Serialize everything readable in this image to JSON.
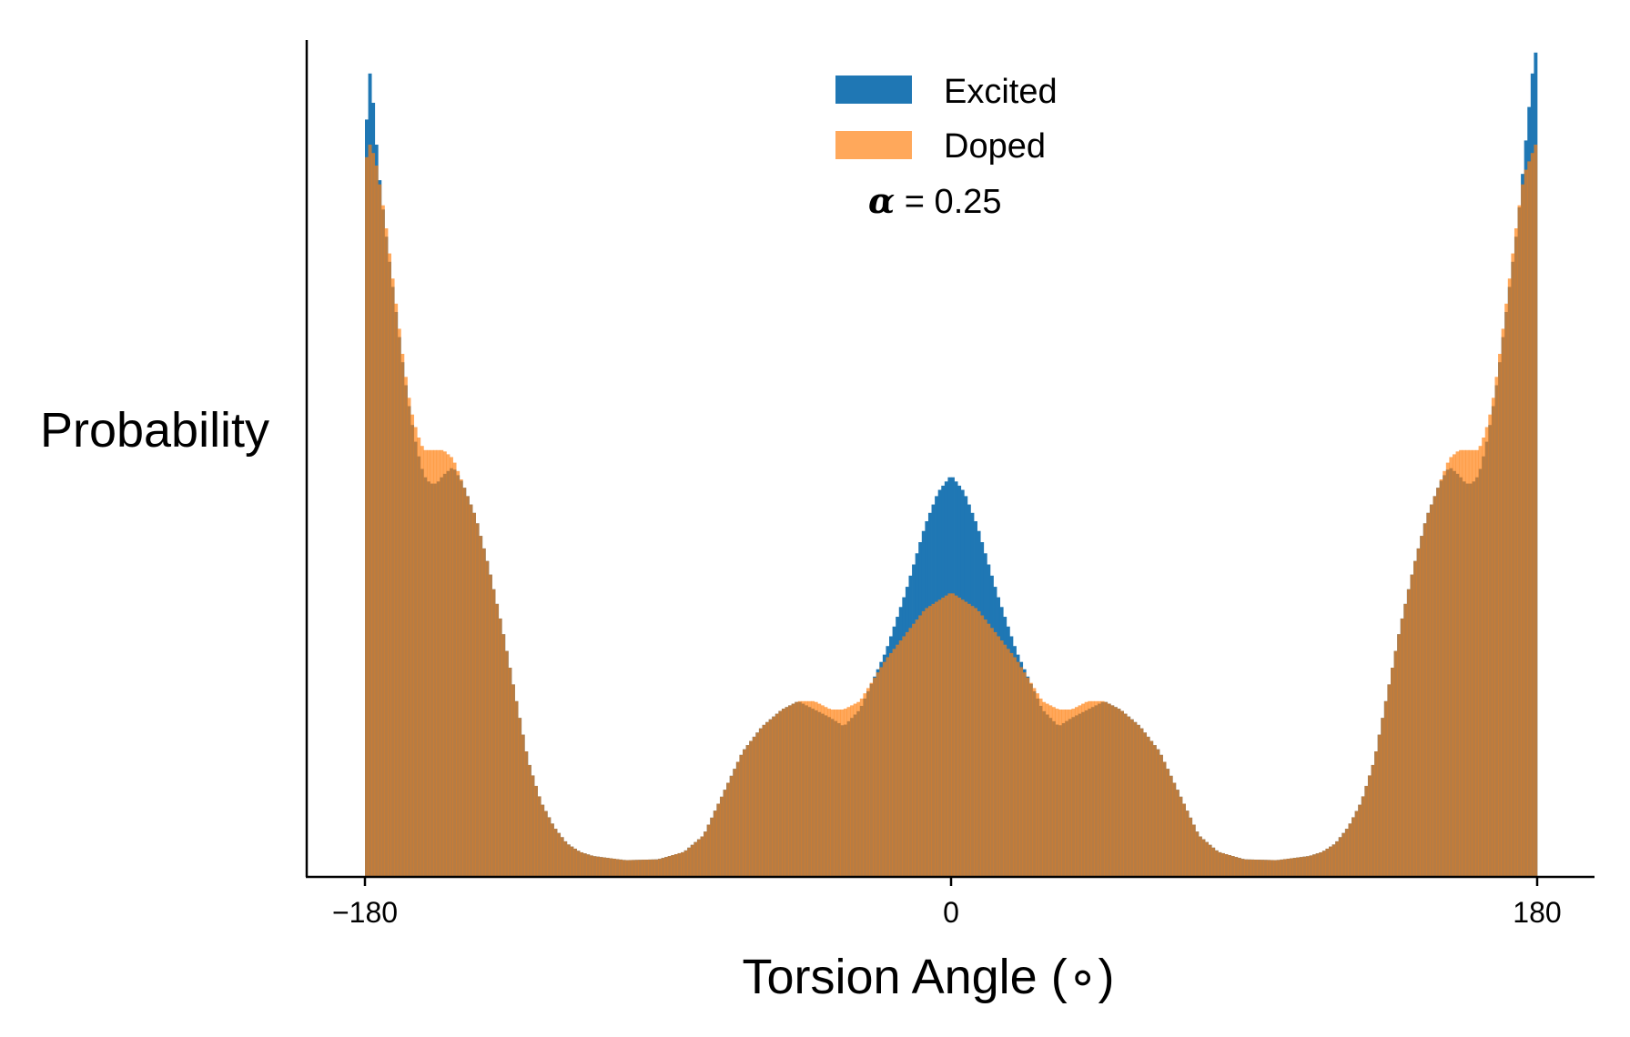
{
  "chart_data": {
    "type": "bar",
    "xlabel": "Torsion Angle (∘)",
    "ylabel": "Probability",
    "xlim": [
      -200,
      220
    ],
    "ylim": [
      0,
      1.0
    ],
    "xticks": [
      -180,
      0,
      180
    ],
    "xtick_labels": [
      "−180",
      "0",
      "180"
    ],
    "yticks": [],
    "grid": false,
    "legend": {
      "placement": "top-center"
    },
    "annotation": {
      "symbol": "α",
      "text": " = 0.25"
    },
    "bin_width_deg": 1,
    "series": [
      {
        "name": "Excited",
        "color": "#1f77b4",
        "opacity": 1.0,
        "profile": [
          [
            -180,
            0.84
          ],
          [
            -179,
            0.97
          ],
          [
            -178,
            0.95
          ],
          [
            -177,
            0.9
          ],
          [
            -176,
            0.85
          ],
          [
            -174,
            0.78
          ],
          [
            -172,
            0.72
          ],
          [
            -170,
            0.66
          ],
          [
            -168,
            0.6
          ],
          [
            -166,
            0.55
          ],
          [
            -164,
            0.51
          ],
          [
            -162,
            0.48
          ],
          [
            -160,
            0.47
          ],
          [
            -158,
            0.47
          ],
          [
            -156,
            0.48
          ],
          [
            -153,
            0.49
          ],
          [
            -150,
            0.47
          ],
          [
            -146,
            0.43
          ],
          [
            -142,
            0.37
          ],
          [
            -138,
            0.3
          ],
          [
            -134,
            0.22
          ],
          [
            -130,
            0.14
          ],
          [
            -126,
            0.09
          ],
          [
            -122,
            0.06
          ],
          [
            -118,
            0.04
          ],
          [
            -114,
            0.03
          ],
          [
            -110,
            0.025
          ],
          [
            -100,
            0.02
          ],
          [
            -90,
            0.021
          ],
          [
            -82,
            0.03
          ],
          [
            -76,
            0.05
          ],
          [
            -70,
            0.1
          ],
          [
            -64,
            0.15
          ],
          [
            -58,
            0.18
          ],
          [
            -52,
            0.2
          ],
          [
            -47,
            0.21
          ],
          [
            -42,
            0.2
          ],
          [
            -37,
            0.19
          ],
          [
            -33,
            0.18
          ],
          [
            -28,
            0.2
          ],
          [
            -20,
            0.27
          ],
          [
            -14,
            0.34
          ],
          [
            -8,
            0.42
          ],
          [
            -4,
            0.46
          ],
          [
            0,
            0.48
          ],
          [
            4,
            0.46
          ],
          [
            8,
            0.42
          ],
          [
            14,
            0.34
          ],
          [
            20,
            0.27
          ],
          [
            28,
            0.2
          ],
          [
            33,
            0.18
          ],
          [
            37,
            0.19
          ],
          [
            42,
            0.2
          ],
          [
            47,
            0.21
          ],
          [
            52,
            0.2
          ],
          [
            58,
            0.18
          ],
          [
            64,
            0.15
          ],
          [
            70,
            0.1
          ],
          [
            76,
            0.05
          ],
          [
            82,
            0.03
          ],
          [
            90,
            0.021
          ],
          [
            100,
            0.02
          ],
          [
            110,
            0.025
          ],
          [
            114,
            0.03
          ],
          [
            118,
            0.04
          ],
          [
            122,
            0.06
          ],
          [
            126,
            0.09
          ],
          [
            130,
            0.14
          ],
          [
            134,
            0.22
          ],
          [
            138,
            0.3
          ],
          [
            142,
            0.37
          ],
          [
            146,
            0.43
          ],
          [
            150,
            0.47
          ],
          [
            153,
            0.49
          ],
          [
            156,
            0.48
          ],
          [
            158,
            0.47
          ],
          [
            160,
            0.47
          ],
          [
            162,
            0.48
          ],
          [
            164,
            0.51
          ],
          [
            166,
            0.55
          ],
          [
            168,
            0.6
          ],
          [
            170,
            0.66
          ],
          [
            172,
            0.72
          ],
          [
            174,
            0.78
          ],
          [
            176,
            0.86
          ],
          [
            178,
            0.94
          ],
          [
            179,
            0.98
          ],
          [
            180,
            0.99
          ]
        ]
      },
      {
        "name": "Doped",
        "color": "#ff7f0e",
        "opacity": 0.68,
        "profile": [
          [
            -180,
            0.84
          ],
          [
            -179,
            0.88
          ],
          [
            -178,
            0.87
          ],
          [
            -177,
            0.86
          ],
          [
            -176,
            0.84
          ],
          [
            -174,
            0.79
          ],
          [
            -172,
            0.73
          ],
          [
            -170,
            0.67
          ],
          [
            -168,
            0.61
          ],
          [
            -166,
            0.56
          ],
          [
            -164,
            0.53
          ],
          [
            -162,
            0.51
          ],
          [
            -160,
            0.51
          ],
          [
            -158,
            0.51
          ],
          [
            -156,
            0.51
          ],
          [
            -153,
            0.5
          ],
          [
            -150,
            0.47
          ],
          [
            -146,
            0.43
          ],
          [
            -142,
            0.37
          ],
          [
            -138,
            0.3
          ],
          [
            -134,
            0.22
          ],
          [
            -130,
            0.14
          ],
          [
            -126,
            0.09
          ],
          [
            -122,
            0.06
          ],
          [
            -118,
            0.04
          ],
          [
            -114,
            0.03
          ],
          [
            -110,
            0.025
          ],
          [
            -100,
            0.02
          ],
          [
            -90,
            0.021
          ],
          [
            -82,
            0.03
          ],
          [
            -76,
            0.05
          ],
          [
            -70,
            0.1
          ],
          [
            -64,
            0.15
          ],
          [
            -58,
            0.18
          ],
          [
            -52,
            0.2
          ],
          [
            -47,
            0.21
          ],
          [
            -42,
            0.21
          ],
          [
            -37,
            0.2
          ],
          [
            -33,
            0.2
          ],
          [
            -28,
            0.21
          ],
          [
            -20,
            0.26
          ],
          [
            -14,
            0.29
          ],
          [
            -8,
            0.32
          ],
          [
            -4,
            0.33
          ],
          [
            0,
            0.34
          ],
          [
            4,
            0.33
          ],
          [
            8,
            0.32
          ],
          [
            14,
            0.29
          ],
          [
            20,
            0.26
          ],
          [
            28,
            0.21
          ],
          [
            33,
            0.2
          ],
          [
            37,
            0.2
          ],
          [
            42,
            0.21
          ],
          [
            47,
            0.21
          ],
          [
            52,
            0.2
          ],
          [
            58,
            0.18
          ],
          [
            64,
            0.15
          ],
          [
            70,
            0.1
          ],
          [
            76,
            0.05
          ],
          [
            82,
            0.03
          ],
          [
            90,
            0.021
          ],
          [
            100,
            0.02
          ],
          [
            110,
            0.025
          ],
          [
            114,
            0.03
          ],
          [
            118,
            0.04
          ],
          [
            122,
            0.06
          ],
          [
            126,
            0.09
          ],
          [
            130,
            0.14
          ],
          [
            134,
            0.22
          ],
          [
            138,
            0.3
          ],
          [
            142,
            0.37
          ],
          [
            146,
            0.43
          ],
          [
            150,
            0.47
          ],
          [
            153,
            0.5
          ],
          [
            156,
            0.51
          ],
          [
            158,
            0.51
          ],
          [
            160,
            0.51
          ],
          [
            162,
            0.51
          ],
          [
            164,
            0.53
          ],
          [
            166,
            0.56
          ],
          [
            168,
            0.61
          ],
          [
            170,
            0.67
          ],
          [
            172,
            0.73
          ],
          [
            174,
            0.79
          ],
          [
            176,
            0.84
          ],
          [
            178,
            0.86
          ],
          [
            179,
            0.87
          ],
          [
            180,
            0.88
          ]
        ]
      }
    ]
  }
}
